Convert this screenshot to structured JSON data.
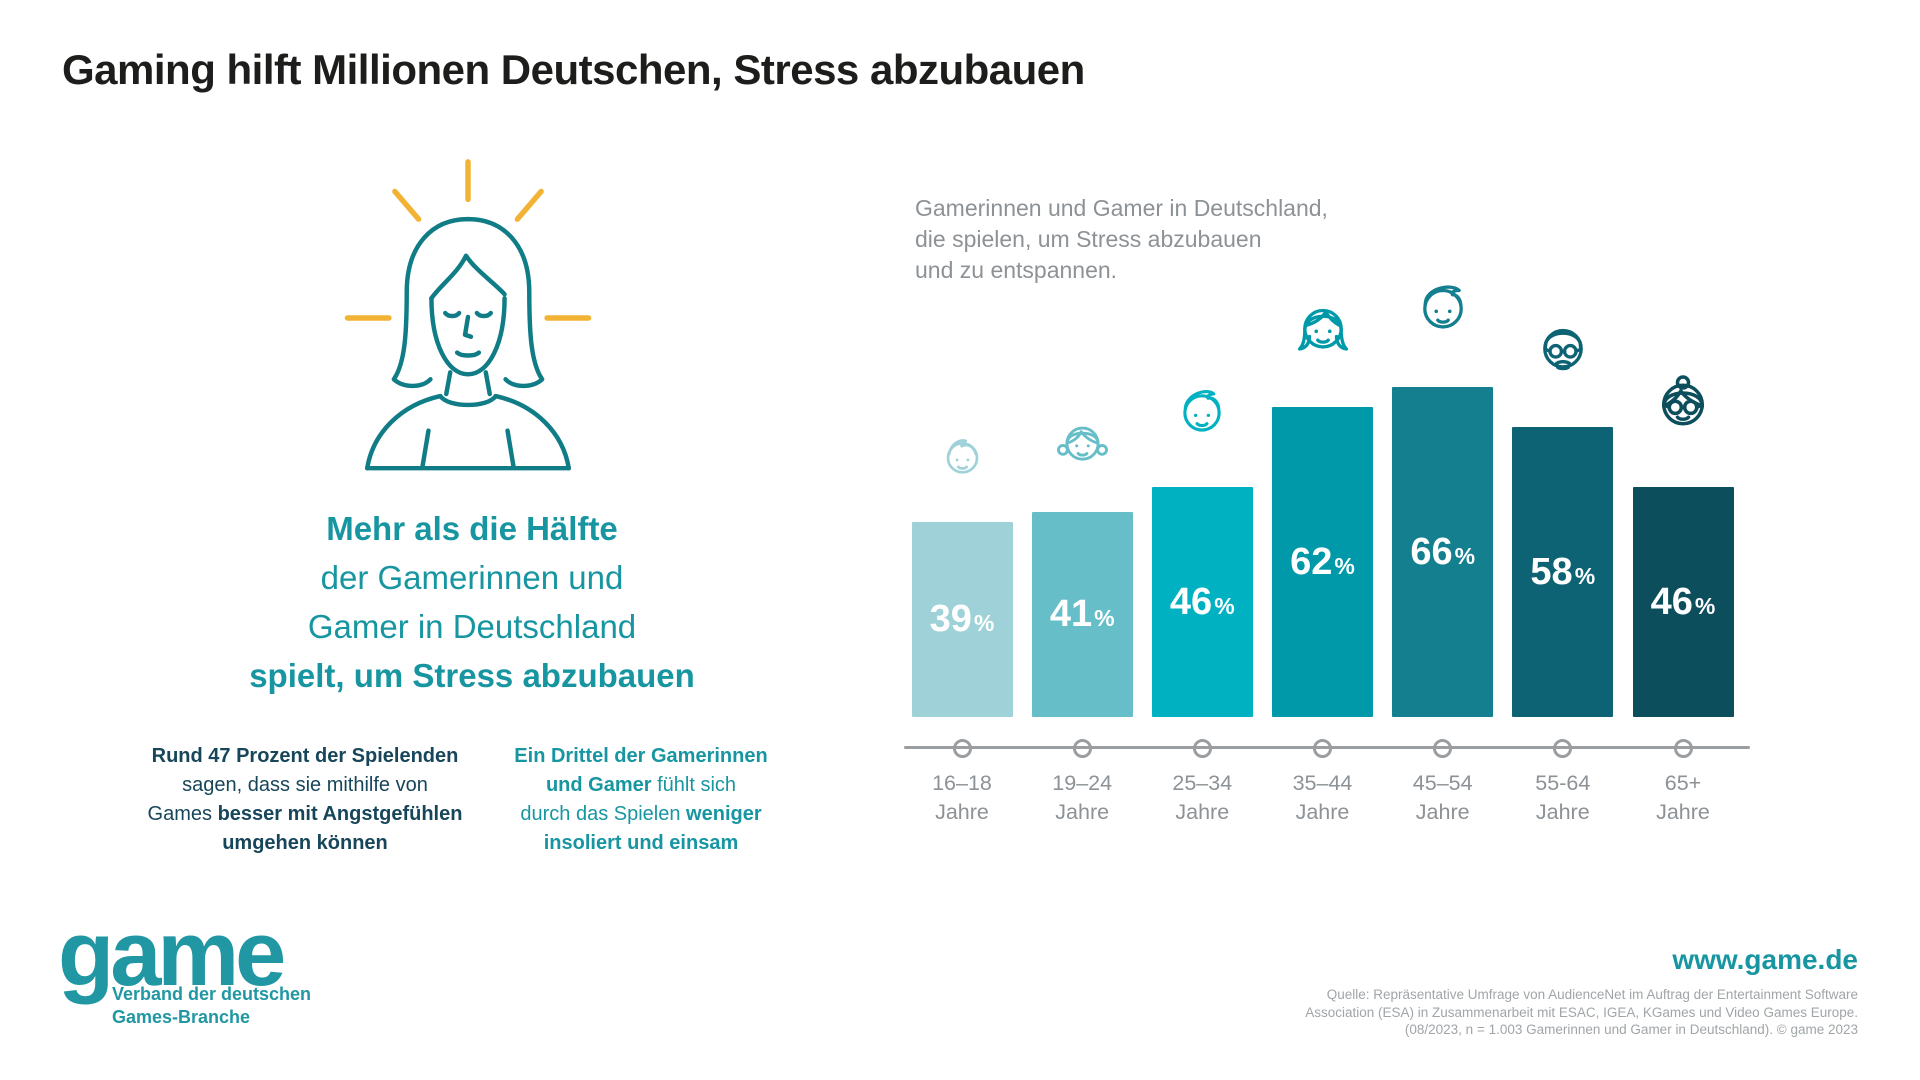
{
  "title": "Gaming hilft Millionen Deutschen, Stress abzubauen",
  "illustration_name": "relaxed-woman-with-rays-illustration",
  "key_message": {
    "lines": [
      [
        {
          "t": "Mehr als die Hälfte",
          "b": true
        }
      ],
      [
        {
          "t": "der Gamerinnen und",
          "b": false
        }
      ],
      [
        {
          "t": "Gamer in Deutschland",
          "b": false
        }
      ],
      [
        {
          "t": "spielt, um Stress abzubauen",
          "b": true
        }
      ]
    ]
  },
  "facts": {
    "left": {
      "lines": [
        [
          {
            "t": "Rund 47 Prozent der Spielenden",
            "b": true
          }
        ],
        [
          {
            "t": "sagen, dass sie mithilfe von",
            "b": false
          }
        ],
        [
          {
            "t": "Games ",
            "b": false
          },
          {
            "t": "besser mit Angstgefühlen",
            "b": true
          }
        ],
        [
          {
            "t": "umgehen können",
            "b": true
          }
        ]
      ]
    },
    "right": {
      "lines": [
        [
          {
            "t": "Ein Drittel der Gamerinnen",
            "b": true
          }
        ],
        [
          {
            "t": "und Gamer",
            "b": true
          },
          {
            "t": " fühlt sich",
            "b": false
          }
        ],
        [
          {
            "t": "durch das Spielen ",
            "b": false
          },
          {
            "t": "weniger",
            "b": true
          }
        ],
        [
          {
            "t": "insoliert und einsam",
            "b": true
          }
        ]
      ]
    }
  },
  "chart_data": {
    "type": "bar",
    "title": [
      "Gamerinnen und Gamer in Deutschland,",
      "die spielen, um Stress abzubauen",
      "und zu entspannen."
    ],
    "categories": [
      "16–18 Jahre",
      "19–24 Jahre",
      "25–34 Jahre",
      "35–44 Jahre",
      "45–54 Jahre",
      "55-64 Jahre",
      "65+ Jahre"
    ],
    "values": [
      39,
      41,
      46,
      62,
      66,
      58,
      46
    ],
    "unit": "%",
    "ylim": [
      0,
      100
    ],
    "grid": false,
    "legend": "none",
    "value_labels_inside_bars": true,
    "value_label_color": "#ffffff",
    "bar_colors": [
      "#9fd2d8",
      "#66bec8",
      "#00b1c1",
      "#0099a9",
      "#147f8e",
      "#0d6374",
      "#0d4e5c"
    ],
    "icons": [
      "teen-boy-icon",
      "teen-girl-icon",
      "young-man-icon",
      "adult-woman-icon",
      "adult-man-icon",
      "senior-man-icon",
      "senior-woman-icon"
    ]
  },
  "footer": {
    "logo": {
      "text": "game",
      "tagline": [
        "Verband der deutschen",
        "Games-Branche"
      ]
    },
    "website": "www.game.de",
    "source_lines": [
      "Quelle: Repräsentative Umfrage von AudienceNet im Auftrag der Entertainment Software",
      "Association (ESA) in Zusammenarbeit mit ESAC, IGEA, KGames und Video Games Europe.",
      "(08/2023, n = 1.003 Gamerinnen und Gamer in Deutschland). © game 2023"
    ]
  },
  "colors": {
    "accent_teal": "#1796a2",
    "dark_navy": "#17465a",
    "gray_text": "#8d9296",
    "title_text": "#1d1d1b",
    "axis_gray": "#9a9ea1",
    "ray_yellow": "#f2b233",
    "illustration_stroke": "#0f7c86",
    "logo_teal": "#2197a3"
  }
}
